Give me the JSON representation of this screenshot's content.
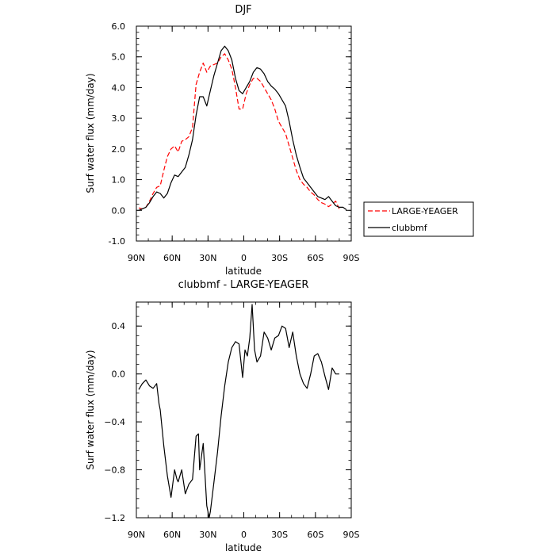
{
  "chart_data": [
    {
      "type": "line",
      "title": "DJF",
      "xlabel": "latitude",
      "ylabel": "Surf water flux (mm/day)",
      "xlim": [
        90,
        -90
      ],
      "ylim": [
        -1.0,
        6.0
      ],
      "xticks": [
        90,
        60,
        30,
        0,
        -30,
        -60,
        -90
      ],
      "xtick_labels": [
        "90N",
        "60N",
        "30N",
        "0",
        "30S",
        "60S",
        "90S"
      ],
      "yticks": [
        -1.0,
        0.0,
        1.0,
        2.0,
        3.0,
        4.0,
        5.0,
        6.0
      ],
      "ytick_labels": [
        "-1.0",
        "0.0",
        "1.0",
        "2.0",
        "3.0",
        "4.0",
        "5.0",
        "6.0"
      ],
      "legend_position": "right",
      "series": [
        {
          "name": "LARGE-YEAGER",
          "color": "#ff0000",
          "dash": "dashed",
          "x": [
            88,
            85,
            82,
            79,
            76,
            73,
            70,
            67,
            64,
            61,
            58,
            55,
            52,
            49,
            46,
            43,
            40,
            37,
            34,
            31,
            28,
            25,
            22,
            19,
            16,
            13,
            10,
            7,
            4,
            1,
            -2,
            -5,
            -8,
            -11,
            -14,
            -17,
            -20,
            -23,
            -26,
            -29,
            -32,
            -35,
            -38,
            -41,
            -44,
            -47,
            -50,
            -53,
            -56,
            -59,
            -62,
            -65,
            -68,
            -71,
            -74,
            -77,
            -80
          ],
          "y": [
            0.08,
            0.05,
            0.1,
            0.3,
            0.55,
            0.75,
            0.8,
            1.3,
            1.75,
            2.0,
            2.1,
            1.9,
            2.25,
            2.3,
            2.4,
            2.7,
            4.1,
            4.5,
            4.8,
            4.5,
            4.7,
            4.75,
            4.8,
            5.0,
            5.1,
            4.9,
            4.6,
            4.0,
            3.3,
            3.3,
            3.8,
            4.1,
            4.3,
            4.3,
            4.2,
            4.0,
            3.8,
            3.6,
            3.3,
            2.9,
            2.7,
            2.5,
            2.1,
            1.7,
            1.3,
            1.0,
            0.85,
            0.75,
            0.6,
            0.5,
            0.35,
            0.25,
            0.2,
            0.12,
            0.2,
            0.3,
            0.05
          ]
        },
        {
          "name": "clubbmf",
          "color": "#000000",
          "dash": "solid",
          "x": [
            88,
            85,
            82,
            79,
            76,
            73,
            70,
            67,
            64,
            61,
            58,
            55,
            52,
            49,
            46,
            43,
            40,
            37,
            34,
            31,
            28,
            25,
            22,
            19,
            16,
            13,
            10,
            7,
            4,
            1,
            -2,
            -5,
            -8,
            -11,
            -14,
            -17,
            -20,
            -23,
            -26,
            -29,
            -32,
            -35,
            -38,
            -41,
            -44,
            -47,
            -50,
            -53,
            -56,
            -59,
            -62,
            -65,
            -68,
            -71,
            -74,
            -77,
            -80,
            -83,
            -86
          ],
          "y": [
            0.0,
            0.05,
            0.1,
            0.25,
            0.45,
            0.6,
            0.55,
            0.4,
            0.55,
            0.9,
            1.15,
            1.1,
            1.25,
            1.4,
            1.8,
            2.3,
            3.1,
            3.7,
            3.7,
            3.4,
            3.9,
            4.4,
            4.8,
            5.2,
            5.35,
            5.2,
            4.9,
            4.3,
            3.9,
            3.8,
            4.0,
            4.2,
            4.5,
            4.65,
            4.6,
            4.45,
            4.2,
            4.05,
            3.95,
            3.8,
            3.6,
            3.4,
            2.9,
            2.3,
            1.8,
            1.4,
            1.05,
            0.9,
            0.75,
            0.6,
            0.45,
            0.4,
            0.35,
            0.45,
            0.3,
            0.15,
            0.1,
            0.1,
            0.02
          ]
        }
      ]
    },
    {
      "type": "line",
      "title": "clubbmf - LARGE-YEAGER",
      "xlabel": "latitude",
      "ylabel": "Surf water flux (mm/day)",
      "xlim": [
        90,
        -90
      ],
      "ylim": [
        -1.2,
        0.6
      ],
      "xticks": [
        90,
        60,
        30,
        0,
        -30,
        -60,
        -90
      ],
      "xtick_labels": [
        "90N",
        "60N",
        "30N",
        "0",
        "30S",
        "60S",
        "90S"
      ],
      "yticks": [
        -1.2,
        -0.8,
        -0.4,
        0.0,
        0.4
      ],
      "ytick_labels": [
        "−1.2",
        "−0.8",
        "−0.4",
        "0.0",
        "0.4"
      ],
      "series": [
        {
          "color": "#000000",
          "dash": "solid",
          "x": [
            88,
            85,
            82,
            79,
            76,
            73,
            71,
            70,
            67,
            64,
            61,
            58,
            56,
            55,
            52,
            49,
            46,
            43,
            40,
            38,
            37,
            34,
            31,
            29,
            28,
            25,
            22,
            19,
            16,
            13,
            10,
            7,
            4,
            1,
            -1,
            -3,
            -5,
            -7,
            -9,
            -11,
            -14,
            -17,
            -20,
            -23,
            -26,
            -29,
            -32,
            -35,
            -38,
            -41,
            -44,
            -47,
            -50,
            -53,
            -56,
            -59,
            -62,
            -65,
            -68,
            -71,
            -74,
            -77,
            -80
          ],
          "y": [
            -0.13,
            -0.08,
            -0.05,
            -0.1,
            -0.12,
            -0.08,
            -0.25,
            -0.3,
            -0.6,
            -0.85,
            -1.03,
            -0.8,
            -0.88,
            -0.9,
            -0.8,
            -1.0,
            -0.92,
            -0.88,
            -0.52,
            -0.5,
            -0.8,
            -0.58,
            -1.1,
            -1.2,
            -1.15,
            -0.9,
            -0.65,
            -0.35,
            -0.1,
            0.1,
            0.22,
            0.27,
            0.25,
            -0.03,
            0.2,
            0.15,
            0.3,
            0.58,
            0.2,
            0.1,
            0.15,
            0.35,
            0.3,
            0.2,
            0.3,
            0.32,
            0.4,
            0.38,
            0.22,
            0.35,
            0.15,
            0.0,
            -0.08,
            -0.12,
            0.0,
            0.15,
            0.17,
            0.1,
            -0.02,
            -0.13,
            0.05,
            0.0,
            0.0
          ]
        }
      ]
    }
  ]
}
